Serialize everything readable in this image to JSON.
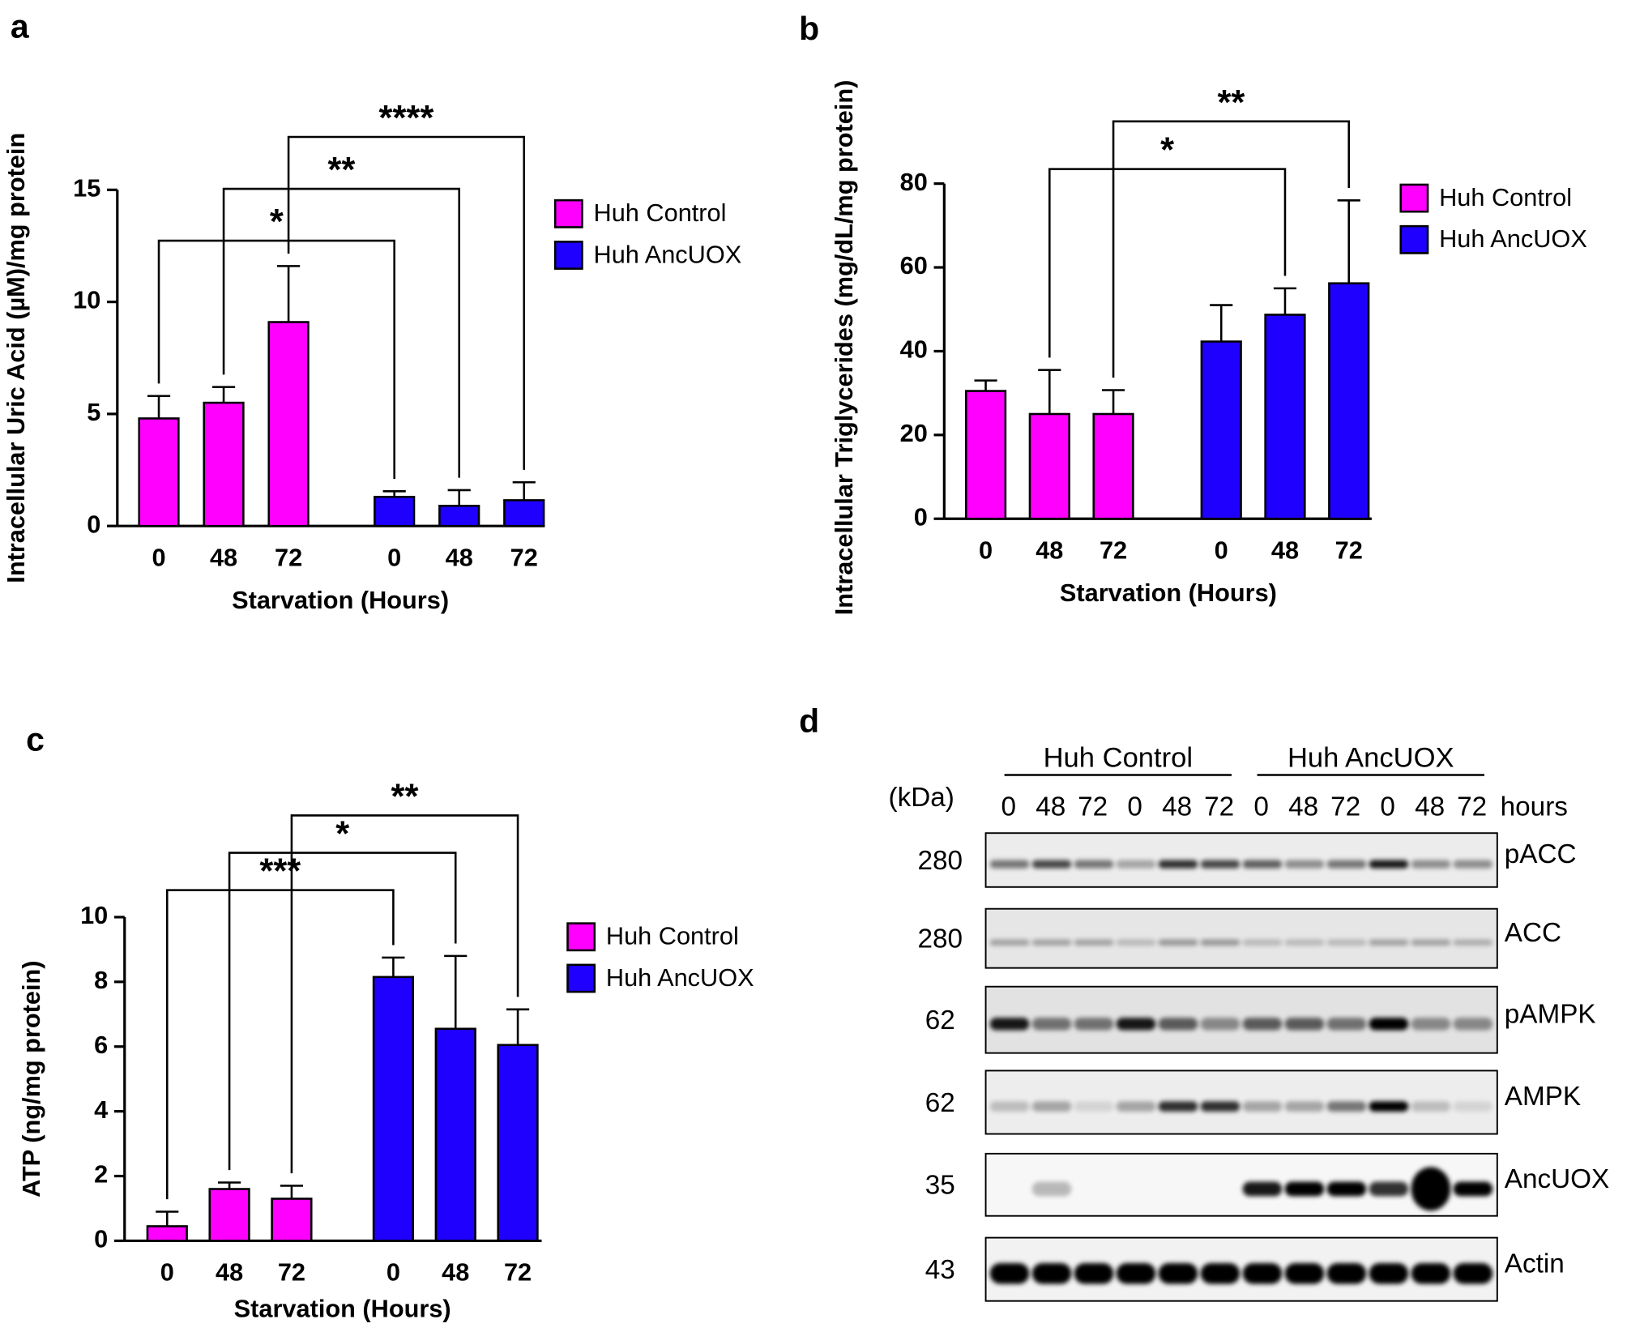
{
  "chart_data": [
    {
      "type": "bar",
      "panel": "a",
      "ylabel": "Intracellular Uric Acid (µM)/mg protein",
      "xlabel": "Starvation (Hours)",
      "categories": [
        "0",
        "48",
        "72"
      ],
      "series": [
        {
          "name": "Huh Control",
          "color": "#ff00ff",
          "values": [
            4.8,
            5.5,
            9.1
          ],
          "errors": [
            1.0,
            0.7,
            2.5
          ]
        },
        {
          "name": "Huh AncUOX",
          "color": "#1f00ff",
          "values": [
            1.3,
            0.9,
            1.15
          ],
          "errors": [
            0.25,
            0.7,
            0.8
          ]
        }
      ],
      "ylim": [
        0,
        15
      ],
      "yticks": [
        0,
        5,
        10,
        15
      ],
      "annotations": [
        {
          "text": "*",
          "from": [
            0,
            0
          ],
          "to": [
            1,
            0
          ]
        },
        {
          "text": "**",
          "from": [
            0,
            1
          ],
          "to": [
            1,
            1
          ]
        },
        {
          "text": "****",
          "from": [
            0,
            2
          ],
          "to": [
            1,
            2
          ]
        }
      ]
    },
    {
      "type": "bar",
      "panel": "b",
      "ylabel": "Intracellular Triglycerides (mg/dL/mg protein)",
      "xlabel": "Starvation (Hours)",
      "categories": [
        "0",
        "48",
        "72"
      ],
      "series": [
        {
          "name": "Huh Control",
          "color": "#ff00ff",
          "values": [
            30.5,
            25,
            25
          ],
          "errors": [
            2.5,
            10.5,
            5.7
          ]
        },
        {
          "name": "Huh AncUOX",
          "color": "#1f00ff",
          "values": [
            42.3,
            48.7,
            56.2
          ],
          "errors": [
            8.7,
            6.3,
            19.8
          ]
        }
      ],
      "ylim": [
        0,
        80
      ],
      "yticks": [
        0,
        20,
        40,
        60,
        80
      ],
      "annotations": [
        {
          "text": "*",
          "from": [
            0,
            1
          ],
          "to": [
            1,
            1
          ]
        },
        {
          "text": "**",
          "from": [
            0,
            2
          ],
          "to": [
            1,
            2
          ]
        }
      ]
    },
    {
      "type": "bar",
      "panel": "c",
      "ylabel": "ATP (ng/mg protein)",
      "xlabel": "Starvation (Hours)",
      "categories": [
        "0",
        "48",
        "72"
      ],
      "series": [
        {
          "name": "Huh Control",
          "color": "#ff00ff",
          "values": [
            0.45,
            1.6,
            1.3
          ],
          "errors": [
            0.45,
            0.2,
            0.4
          ]
        },
        {
          "name": "Huh AncUOX",
          "color": "#1f00ff",
          "values": [
            8.15,
            6.55,
            6.05
          ],
          "errors": [
            0.6,
            2.25,
            1.1
          ]
        }
      ],
      "ylim": [
        0,
        10
      ],
      "yticks": [
        0,
        2,
        4,
        6,
        8,
        10
      ],
      "annotations": [
        {
          "text": "***",
          "from": [
            0,
            0
          ],
          "to": [
            1,
            0
          ]
        },
        {
          "text": "*",
          "from": [
            0,
            1
          ],
          "to": [
            1,
            1
          ]
        },
        {
          "text": "**",
          "from": [
            0,
            2
          ],
          "to": [
            1,
            2
          ]
        }
      ]
    }
  ],
  "blot": {
    "panel": "d",
    "groups": [
      "Huh Control",
      "Huh AncUOX"
    ],
    "unit_label": "(kDa)",
    "lanes": [
      "0",
      "48",
      "72",
      "0",
      "48",
      "72",
      "0",
      "48",
      "72",
      "0",
      "48",
      "72"
    ],
    "lanes_label": "hours",
    "rows": [
      {
        "kda": 280,
        "name": "pACC"
      },
      {
        "kda": 280,
        "name": "ACC"
      },
      {
        "kda": 62,
        "name": "pAMPK"
      },
      {
        "kda": 62,
        "name": "AMPK"
      },
      {
        "kda": 35,
        "name": "AncUOX"
      },
      {
        "kda": 43,
        "name": "Actin"
      }
    ]
  }
}
